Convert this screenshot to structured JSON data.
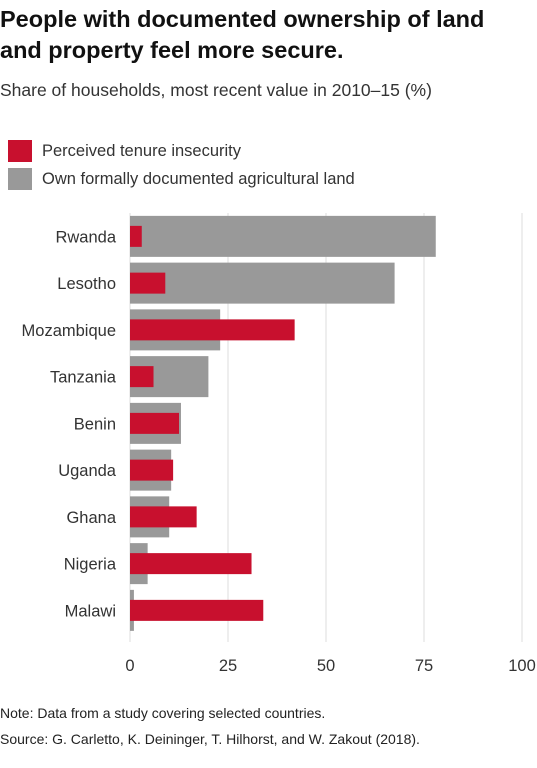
{
  "title": "People with documented ownership of land and property feel more secure.",
  "subtitle": "Share of households, most recent value in 2010–15 (%)",
  "legend": {
    "insecurity": "Perceived tenure insecurity",
    "documented": "Own formally documented agricultural land"
  },
  "colors": {
    "insecurity": "#c8102e",
    "documented": "#999999",
    "grid": "#e3e3e3"
  },
  "chart_data": {
    "type": "bar",
    "orientation": "horizontal",
    "categories": [
      "Rwanda",
      "Lesotho",
      "Mozambique",
      "Tanzania",
      "Benin",
      "Uganda",
      "Ghana",
      "Nigeria",
      "Malawi"
    ],
    "series": [
      {
        "name": "Own formally documented agricultural land",
        "values": [
          78,
          67.5,
          23,
          20,
          13,
          10.5,
          10,
          4.5,
          1
        ]
      },
      {
        "name": "Perceived tenure insecurity",
        "values": [
          3,
          9,
          42,
          6,
          12.5,
          11,
          17,
          31,
          34
        ]
      }
    ],
    "xlim": [
      0,
      100
    ],
    "xticks": [
      "0",
      "25",
      "50",
      "75",
      "100"
    ],
    "grid": "vertical",
    "legend_position": "top-left"
  },
  "notes": {
    "note": "Note: Data from a study covering selected countries.",
    "source": "Source: G. Carletto, K. Deininger, T. Hilhorst, and W. Zakout (2018)."
  }
}
